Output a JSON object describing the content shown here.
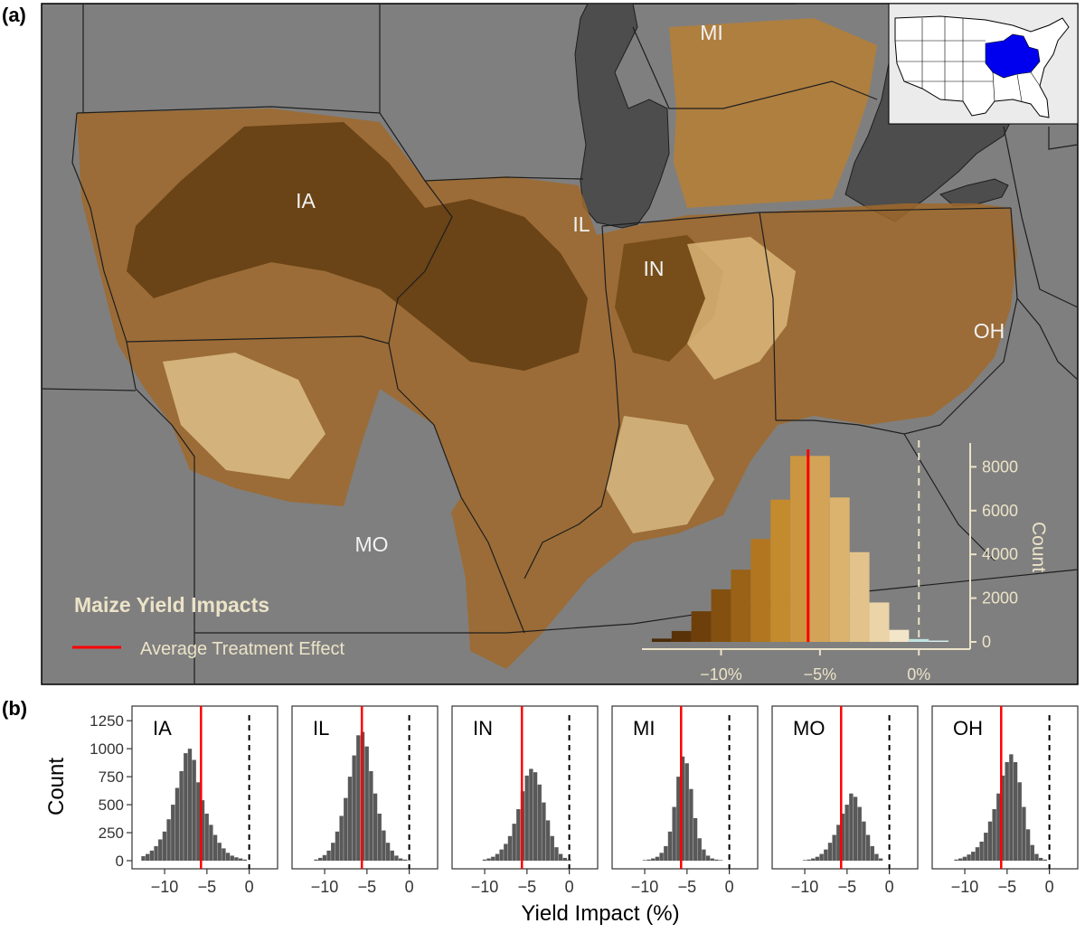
{
  "panel_a": {
    "tag": "(a)",
    "title": "Maize Yield Impacts",
    "legend_label": "Average Treatment Effect",
    "state_labels": [
      "MI",
      "IA",
      "IL",
      "IN",
      "OH",
      "MO"
    ],
    "colors": {
      "land": "#7f7f7f",
      "lake": "#4d4d4d",
      "border": "#1e1e1e",
      "label_text": "#f2f2f2",
      "title_text": "#ece3c8",
      "ate_line": "#ff0000",
      "inset_highlight": "#0000ee",
      "inset_background": "#ebebeb"
    },
    "histogram": {
      "ylabel": "Count",
      "y_ticks": [
        "0",
        "2000",
        "4000",
        "6000",
        "8000"
      ],
      "x_ticks": [
        "−10%",
        "−5%",
        "0%"
      ],
      "bin_width_pct": 1,
      "bins": [
        {
          "x": -13,
          "count": 150,
          "color": "#4a2a05"
        },
        {
          "x": -12,
          "count": 500,
          "color": "#5a3208"
        },
        {
          "x": -11,
          "count": 1400,
          "color": "#6e3f0a"
        },
        {
          "x": -10,
          "count": 2400,
          "color": "#83500f"
        },
        {
          "x": -9,
          "count": 3300,
          "color": "#9a6216"
        },
        {
          "x": -8,
          "count": 4700,
          "color": "#b27620"
        },
        {
          "x": -7,
          "count": 6500,
          "color": "#c38a2e"
        },
        {
          "x": -6,
          "count": 8500,
          "color": "#cc9640"
        },
        {
          "x": -5,
          "count": 8500,
          "color": "#d3a457"
        },
        {
          "x": -4,
          "count": 6600,
          "color": "#dbb36f"
        },
        {
          "x": -3,
          "count": 4100,
          "color": "#e3c38b"
        },
        {
          "x": -2,
          "count": 1800,
          "color": "#ebd4a8"
        },
        {
          "x": -1,
          "count": 550,
          "color": "#f3e5c8"
        },
        {
          "x": 0,
          "count": 130,
          "color": "#bfe3e3"
        },
        {
          "x": 1,
          "count": 60,
          "color": "#d7efef"
        }
      ],
      "ate_value": -5.6,
      "zero_value": 0
    }
  },
  "panel_b": {
    "tag": "(b)",
    "xlabel": "Yield Impact (%)",
    "ylabel": "Count",
    "y_ticks": [
      "0",
      "250",
      "500",
      "750",
      "1000",
      "1250"
    ],
    "x_ticks": [
      "−10",
      "−5",
      "0"
    ],
    "bar_color": "#595959",
    "ate_color": "#ff0000",
    "chart_data": [
      {
        "type": "bar",
        "state": "IA",
        "ate": -5.7,
        "x": [
          -12.5,
          -12,
          -11.5,
          -11,
          -10.5,
          -10,
          -9.5,
          -9,
          -8.5,
          -8,
          -7.5,
          -7,
          -6.5,
          -6,
          -5.5,
          -5,
          -4.5,
          -4,
          -3.5,
          -3,
          -2.5,
          -2,
          -1.5,
          -1,
          -0.5
        ],
        "values": [
          40,
          60,
          90,
          130,
          190,
          260,
          370,
          500,
          650,
          800,
          960,
          1000,
          900,
          700,
          540,
          420,
          320,
          230,
          160,
          110,
          70,
          45,
          30,
          20,
          10
        ]
      },
      {
        "type": "bar",
        "state": "IL",
        "ate": -5.6,
        "x": [
          -11,
          -10.5,
          -10,
          -9.5,
          -9,
          -8.5,
          -8,
          -7.5,
          -7,
          -6.5,
          -6,
          -5.5,
          -5,
          -4.5,
          -4,
          -3.5,
          -3,
          -2.5,
          -2,
          -1.5,
          -1,
          -0.5,
          0
        ],
        "values": [
          10,
          25,
          50,
          90,
          160,
          260,
          400,
          560,
          750,
          940,
          1120,
          1150,
          1020,
          800,
          600,
          420,
          270,
          160,
          90,
          45,
          20,
          10,
          5
        ]
      },
      {
        "type": "bar",
        "state": "IN",
        "ate": -5.6,
        "x": [
          -10,
          -9.5,
          -9,
          -8.5,
          -8,
          -7.5,
          -7,
          -6.5,
          -6,
          -5.5,
          -5,
          -4.5,
          -4,
          -3.5,
          -3,
          -2.5,
          -2,
          -1.5,
          -1,
          -0.5,
          0
        ],
        "values": [
          10,
          20,
          35,
          60,
          100,
          150,
          220,
          330,
          460,
          620,
          760,
          820,
          790,
          680,
          520,
          360,
          220,
          120,
          60,
          25,
          10
        ]
      },
      {
        "type": "bar",
        "state": "MI",
        "ate": -5.7,
        "x": [
          -10,
          -9.5,
          -9,
          -8.5,
          -8,
          -7.5,
          -7,
          -6.5,
          -6,
          -5.5,
          -5,
          -4.5,
          -4,
          -3.5,
          -3,
          -2.5,
          -2,
          -1.5,
          -1
        ],
        "values": [
          5,
          10,
          20,
          35,
          70,
          130,
          260,
          480,
          750,
          930,
          870,
          640,
          380,
          200,
          100,
          45,
          20,
          10,
          5
        ]
      },
      {
        "type": "bar",
        "state": "MO",
        "ate": -5.7,
        "x": [
          -10,
          -9.5,
          -9,
          -8.5,
          -8,
          -7.5,
          -7,
          -6.5,
          -6,
          -5.5,
          -5,
          -4.5,
          -4,
          -3.5,
          -3,
          -2.5,
          -2,
          -1.5,
          -1
        ],
        "values": [
          5,
          10,
          20,
          35,
          60,
          100,
          160,
          230,
          320,
          420,
          500,
          600,
          570,
          480,
          350,
          230,
          130,
          60,
          20
        ]
      },
      {
        "type": "bar",
        "state": "OH",
        "ate": -5.7,
        "x": [
          -11,
          -10.5,
          -10,
          -9.5,
          -9,
          -8.5,
          -8,
          -7.5,
          -7,
          -6.5,
          -6,
          -5.5,
          -5,
          -4.5,
          -4,
          -3.5,
          -3,
          -2.5,
          -2,
          -1.5,
          -1,
          -0.5
        ],
        "values": [
          10,
          20,
          35,
          55,
          80,
          120,
          170,
          250,
          350,
          460,
          600,
          760,
          880,
          950,
          880,
          700,
          480,
          280,
          140,
          60,
          25,
          10
        ]
      }
    ]
  }
}
